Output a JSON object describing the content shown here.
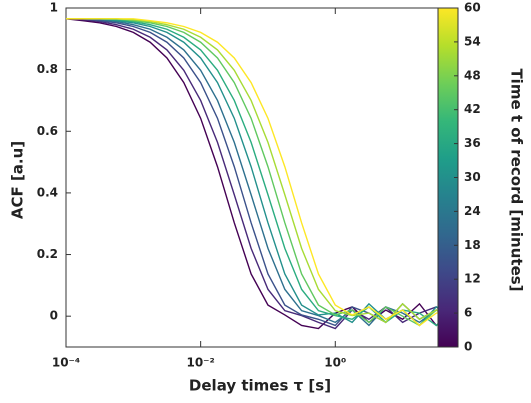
{
  "chart_data": {
    "type": "line",
    "xlabel": "Delay times τ [s]",
    "ylabel": "ACF [a.u]",
    "xscale": "log",
    "grid": false,
    "xlim": [
      0.0001,
      60
    ],
    "ylim": [
      -0.1,
      1.0
    ],
    "xticks": [
      {
        "value": 0.0001,
        "label": "10⁻⁴"
      },
      {
        "value": 0.01,
        "label": "10⁻²"
      },
      {
        "value": 1,
        "label": "10⁰"
      }
    ],
    "yticks": [
      0,
      0.2,
      0.4,
      0.6,
      0.8,
      1
    ],
    "x": [
      0.0001,
      0.000178,
      0.000316,
      0.000562,
      0.001,
      0.00178,
      0.00316,
      0.00562,
      0.01,
      0.0178,
      0.0316,
      0.0562,
      0.1,
      0.178,
      0.316,
      0.562,
      1,
      1.78,
      3.16,
      5.62,
      10,
      17.8,
      31.6,
      56.2
    ],
    "series": [
      {
        "time": 0,
        "values": [
          0.965,
          0.959,
          0.952,
          0.94,
          0.921,
          0.889,
          0.838,
          0.758,
          0.642,
          0.485,
          0.303,
          0.137,
          0.036,
          0.004,
          -0.03,
          -0.04,
          0.01,
          0.03,
          -0.02,
          0.02,
          -0.01,
          0.04,
          -0.03,
          0.01
        ]
      },
      {
        "time": 7,
        "values": [
          0.965,
          0.962,
          0.956,
          0.946,
          0.931,
          0.905,
          0.864,
          0.798,
          0.7,
          0.564,
          0.394,
          0.22,
          0.087,
          0.018,
          0.002,
          -0.02,
          -0.04,
          0.02,
          -0.01,
          0.03,
          -0.02,
          0.01,
          0.03,
          -0.01
        ]
      },
      {
        "time": 15,
        "values": [
          0.965,
          0.965,
          0.959,
          0.952,
          0.94,
          0.921,
          0.889,
          0.838,
          0.758,
          0.642,
          0.485,
          0.303,
          0.137,
          0.036,
          0.004,
          -0.01,
          -0.03,
          0.03,
          0.01,
          -0.02,
          0.04,
          -0.01,
          0.02,
          0.0
        ]
      },
      {
        "time": 22,
        "values": [
          0.965,
          0.965,
          0.962,
          0.956,
          0.946,
          0.931,
          0.905,
          0.864,
          0.798,
          0.7,
          0.564,
          0.394,
          0.22,
          0.087,
          0.018,
          0.002,
          -0.02,
          0.02,
          -0.03,
          0.03,
          0.01,
          -0.02,
          0.02,
          -0.01
        ]
      },
      {
        "time": 30,
        "values": [
          0.965,
          0.965,
          0.965,
          0.959,
          0.952,
          0.94,
          0.921,
          0.889,
          0.838,
          0.758,
          0.642,
          0.485,
          0.303,
          0.137,
          0.036,
          0.004,
          0.01,
          -0.02,
          0.04,
          -0.01,
          0.02,
          -0.03,
          0.03,
          0.01
        ]
      },
      {
        "time": 37,
        "values": [
          0.965,
          0.965,
          0.965,
          0.962,
          0.956,
          0.946,
          0.931,
          0.905,
          0.864,
          0.798,
          0.7,
          0.564,
          0.394,
          0.22,
          0.087,
          0.018,
          0.002,
          -0.01,
          0.03,
          -0.02,
          0.02,
          0.01,
          -0.03,
          0.02
        ]
      },
      {
        "time": 45,
        "values": [
          0.965,
          0.965,
          0.965,
          0.965,
          0.959,
          0.952,
          0.94,
          0.921,
          0.889,
          0.838,
          0.758,
          0.642,
          0.485,
          0.303,
          0.137,
          0.036,
          0.004,
          0.02,
          -0.02,
          0.03,
          0.0,
          -0.03,
          0.02,
          0.01
        ]
      },
      {
        "time": 52,
        "values": [
          0.965,
          0.965,
          0.965,
          0.965,
          0.962,
          0.956,
          0.946,
          0.931,
          0.905,
          0.864,
          0.798,
          0.7,
          0.564,
          0.394,
          0.22,
          0.087,
          0.018,
          0.002,
          0.01,
          -0.02,
          0.04,
          -0.01,
          0.02,
          -0.02
        ]
      },
      {
        "time": 60,
        "values": [
          0.965,
          0.965,
          0.965,
          0.965,
          0.965,
          0.959,
          0.952,
          0.94,
          0.921,
          0.889,
          0.838,
          0.758,
          0.642,
          0.485,
          0.303,
          0.137,
          0.036,
          0.004,
          0.03,
          -0.01,
          0.02,
          -0.03,
          0.01,
          0.02
        ]
      }
    ],
    "colorbar": {
      "label": "Time t of record [minutes]",
      "lim": [
        0,
        60
      ],
      "ticks": [
        0,
        6,
        12,
        18,
        24,
        30,
        36,
        42,
        48,
        54,
        60
      ],
      "colors": [
        "#440154",
        "#482878",
        "#3e4989",
        "#31688e",
        "#26828e",
        "#1f9e89",
        "#35b779",
        "#6ece58",
        "#b5de2b",
        "#fde725"
      ]
    }
  }
}
